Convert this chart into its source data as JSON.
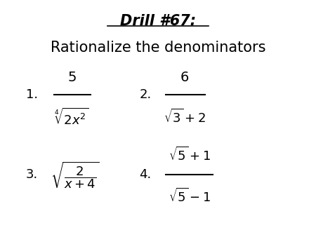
{
  "title_line1": "Drill #67:",
  "title_line2": "Rationalize the denominators",
  "background_color": "#ffffff",
  "text_color": "#000000",
  "figsize": [
    4.5,
    3.38
  ],
  "dpi": 100
}
